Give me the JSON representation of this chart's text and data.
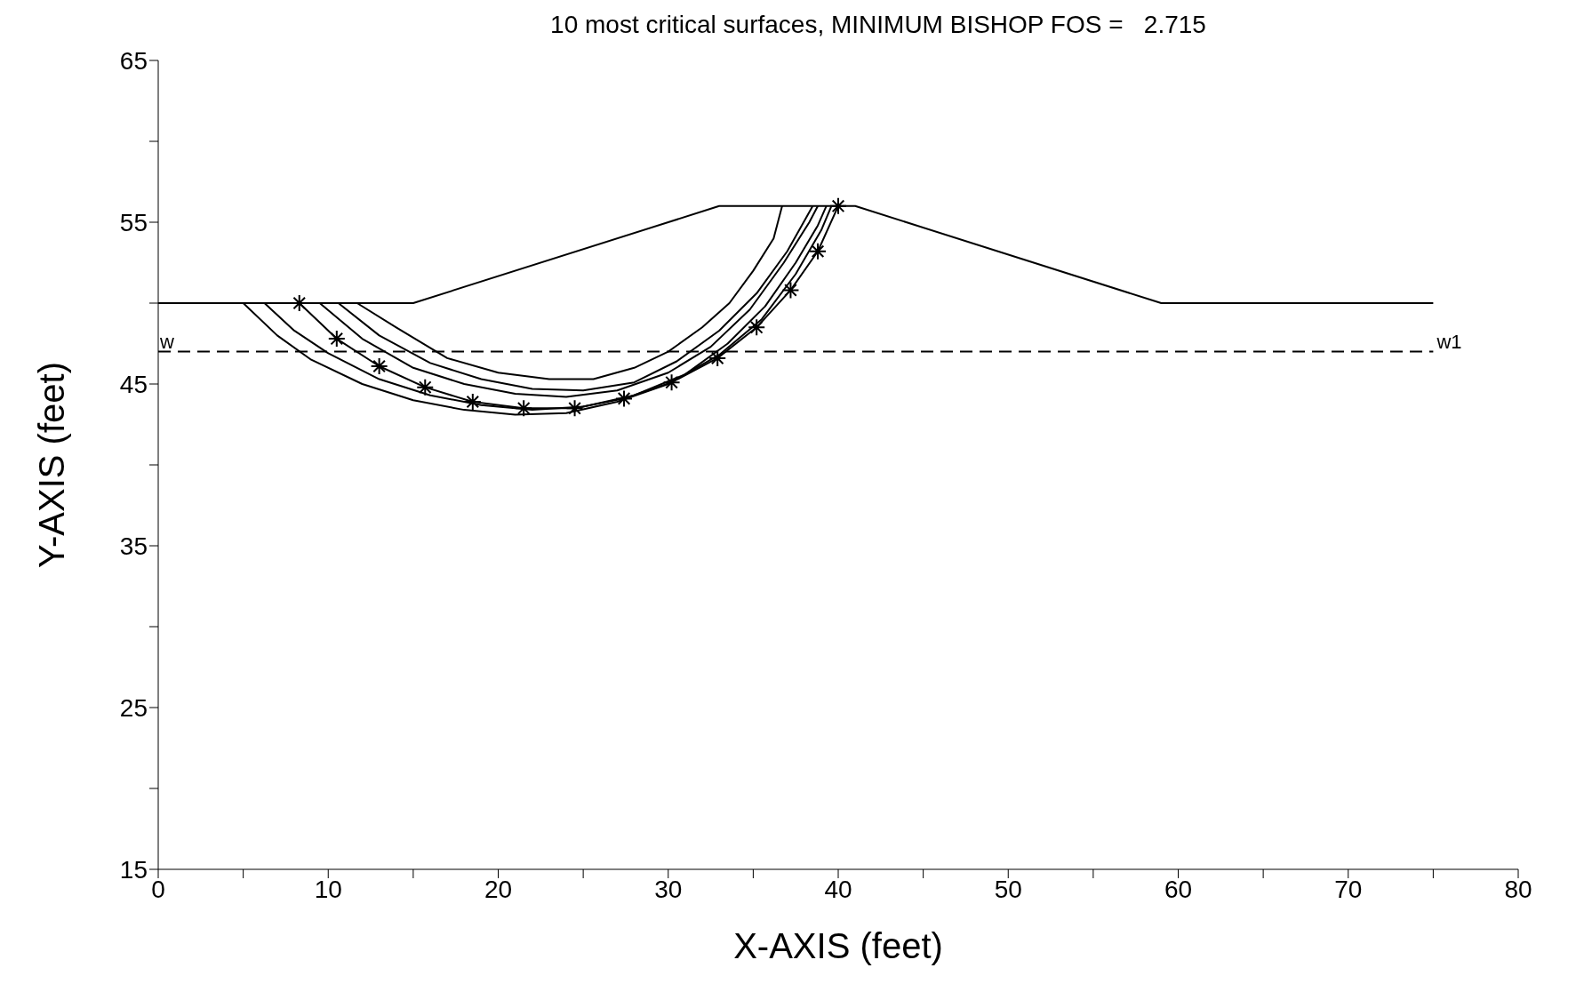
{
  "chart_data": {
    "type": "line",
    "title": "10 most critical surfaces, MINIMUM BISHOP FOS =   2.715",
    "xlabel": "X-AXIS (feet)",
    "ylabel": "Y-AXIS (feet)",
    "xlim": [
      0,
      80
    ],
    "ylim": [
      15,
      65
    ],
    "xticks": [
      0,
      {
        "value": 5,
        "label": null
      },
      10,
      {
        "value": 15,
        "label": null
      },
      20,
      {
        "value": 25,
        "label": null
      },
      30,
      {
        "value": 35,
        "label": null
      },
      40,
      {
        "value": 45,
        "label": null
      },
      50,
      {
        "value": 55,
        "label": null
      },
      60,
      {
        "value": 65,
        "label": null
      },
      70,
      {
        "value": 75,
        "label": null
      },
      80
    ],
    "yticks": [
      15,
      {
        "value": 20,
        "label": null
      },
      25,
      {
        "value": 30,
        "label": null
      },
      35,
      {
        "value": 40,
        "label": null
      },
      45,
      {
        "value": 50,
        "label": null
      },
      55,
      {
        "value": 60,
        "label": null
      },
      65
    ],
    "grid": false,
    "marker": "none",
    "line_style": "solid",
    "annotations": [
      {
        "text": "w",
        "x": 0,
        "y": 47
      },
      {
        "text": "w1",
        "x": 75,
        "y": 47
      }
    ],
    "series": [
      {
        "color": "#000000",
        "x": [
          0,
          15,
          33,
          41,
          59,
          75
        ],
        "values": [
          50,
          50,
          56,
          56,
          50,
          50
        ]
      },
      {
        "color": "#000000",
        "line_style": "dashed",
        "x": [
          0,
          75
        ],
        "values": [
          47,
          47
        ]
      },
      {
        "color": "#000000",
        "marker": "cross",
        "x": [
          8.3,
          10.5,
          13,
          15.7,
          18.5,
          21.5,
          24.5,
          27.4,
          30.2,
          32.9,
          35.2,
          37.2,
          38.8,
          40
        ],
        "values": [
          50,
          47.8,
          46.1,
          44.8,
          43.9,
          43.5,
          43.5,
          44.1,
          45.1,
          46.6,
          48.5,
          50.8,
          53.2,
          56
        ]
      },
      {
        "color": "#000000",
        "x": [
          5,
          7,
          9,
          12,
          15,
          18,
          21,
          24,
          27,
          30,
          33,
          35.5,
          37.5,
          39,
          39.6
        ],
        "values": [
          50,
          48,
          46.5,
          45,
          44,
          43.4,
          43.1,
          43.2,
          43.9,
          45,
          46.8,
          49,
          51.8,
          54.5,
          56
        ]
      },
      {
        "color": "#000000",
        "x": [
          6.25,
          8,
          10,
          13,
          16,
          19,
          22,
          25,
          28,
          31,
          33.5,
          35.7,
          37.5,
          38.8,
          39.3
        ],
        "values": [
          50,
          48.3,
          46.9,
          45.3,
          44.3,
          43.7,
          43.4,
          43.6,
          44.3,
          45.6,
          47.5,
          49.8,
          52.5,
          54.8,
          56
        ]
      },
      {
        "color": "#000000",
        "x": [
          9.5,
          12,
          15,
          18,
          21,
          24,
          27,
          30,
          32.5,
          34.8,
          36.8,
          38.3,
          38.8
        ],
        "values": [
          50,
          47.8,
          46,
          45,
          44.4,
          44.2,
          44.6,
          45.7,
          47.3,
          49.6,
          52.5,
          55,
          56
        ]
      },
      {
        "color": "#000000",
        "x": [
          10.6,
          13,
          16,
          19,
          22,
          25,
          28,
          30.5,
          33,
          35.2,
          37,
          38.5
        ],
        "values": [
          50,
          48,
          46.3,
          45.3,
          44.7,
          44.6,
          45.1,
          46.4,
          48.3,
          50.6,
          53.2,
          56
        ]
      },
      {
        "color": "#000000",
        "x": [
          11.7,
          14,
          17,
          20,
          23,
          25.6,
          28,
          30,
          32,
          33.6,
          35,
          36.2,
          36.7
        ],
        "values": [
          50,
          48.5,
          46.6,
          45.7,
          45.3,
          45.3,
          46,
          47,
          48.5,
          50,
          52,
          54,
          56
        ]
      }
    ]
  }
}
